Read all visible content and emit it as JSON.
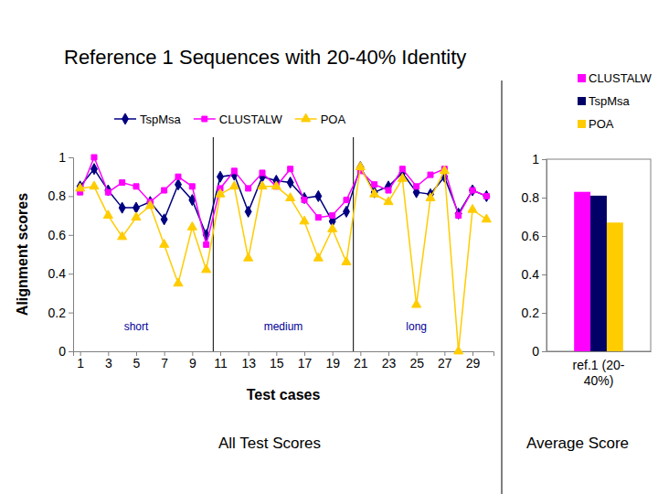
{
  "title": "Reference 1 Sequences with 20-40% Identity",
  "chart_data": [
    {
      "type": "line",
      "caption": "All Test Scores",
      "x_label": "Test cases",
      "y_label": "Alignment scores",
      "x": [
        1,
        2,
        3,
        4,
        5,
        6,
        7,
        8,
        9,
        10,
        11,
        12,
        13,
        14,
        15,
        16,
        17,
        18,
        19,
        20,
        21,
        22,
        23,
        24,
        25,
        26,
        27,
        28,
        29,
        30
      ],
      "xlim": [
        0.5,
        30.5
      ],
      "xticks": [
        1,
        3,
        5,
        7,
        9,
        11,
        13,
        15,
        17,
        19,
        21,
        23,
        25,
        27,
        29
      ],
      "ylim": [
        0,
        1
      ],
      "yticks": [
        0,
        0.2,
        0.4,
        0.6,
        0.8,
        1
      ],
      "grid": false,
      "legend": "top",
      "series": [
        {
          "name": "TspMsa",
          "color": "#000080",
          "marker": "diamond",
          "values": [
            0.85,
            0.94,
            0.83,
            0.74,
            0.74,
            0.77,
            0.68,
            0.86,
            0.78,
            0.6,
            0.9,
            0.91,
            0.72,
            0.9,
            0.88,
            0.87,
            0.79,
            0.8,
            0.67,
            0.72,
            0.95,
            0.82,
            0.85,
            0.92,
            0.82,
            0.81,
            0.9,
            0.71,
            0.83,
            0.8
          ]
        },
        {
          "name": "CLUSTALW",
          "color": "#ff00ff",
          "marker": "square",
          "values": [
            0.82,
            1,
            0.82,
            0.87,
            0.85,
            0.77,
            0.83,
            0.9,
            0.85,
            0.55,
            0.84,
            0.93,
            0.84,
            0.92,
            0.85,
            0.94,
            0.78,
            0.69,
            0.7,
            0.78,
            0.93,
            0.86,
            0.83,
            0.94,
            0.85,
            0.91,
            0.94,
            0.7,
            0.83,
            0.8
          ]
        },
        {
          "name": "POA",
          "color": "#ffcc00",
          "marker": "triangle",
          "values": [
            0.84,
            0.85,
            0.7,
            0.59,
            0.69,
            0.75,
            0.55,
            0.35,
            0.64,
            0.42,
            0.81,
            0.85,
            0.48,
            0.85,
            0.85,
            0.79,
            0.67,
            0.48,
            0.63,
            0.46,
            0.95,
            0.81,
            0.77,
            0.89,
            0.24,
            0.79,
            0.93,
            0,
            0.73,
            0.68
          ]
        }
      ],
      "annotations": [
        {
          "text": "short",
          "x": 5,
          "y": 0.11
        },
        {
          "text": "medium",
          "x": 15.5,
          "y": 0.11
        },
        {
          "text": "long",
          "x": 25,
          "y": 0.11
        }
      ],
      "separators": [
        10.5,
        20.5
      ]
    },
    {
      "type": "bar",
      "caption": "Average Score",
      "categories": [
        "ref.1 (20-40%)"
      ],
      "ylim": [
        0,
        1
      ],
      "yticks": [
        0,
        0.2,
        0.4,
        0.6,
        0.8,
        1
      ],
      "grid": false,
      "legend": "top-right",
      "series": [
        {
          "name": "CLUSTALW",
          "color": "#ff00ff",
          "values": [
            0.83
          ]
        },
        {
          "name": "TspMsa",
          "color": "#000066",
          "values": [
            0.81
          ]
        },
        {
          "name": "POA",
          "color": "#ffcc00",
          "values": [
            0.67
          ]
        }
      ]
    }
  ]
}
